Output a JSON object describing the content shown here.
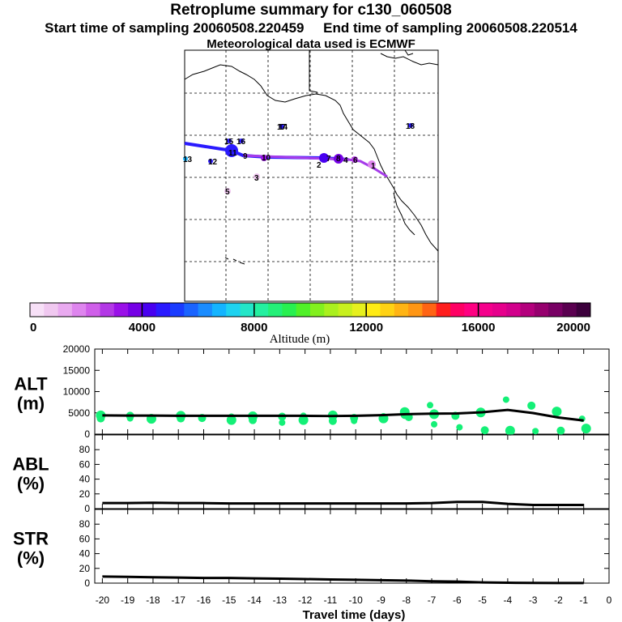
{
  "header": {
    "title": "Retroplume summary for c130_060508",
    "subtitle_start": "Start time of sampling 20060508.220459",
    "subtitle_end": "End time of sampling 20060508.220514",
    "met_line": "Meteorological data used is ECMWF"
  },
  "colorbar": {
    "label": "Altitude (m)",
    "ticks": [
      "0",
      "4000",
      "8000",
      "12000",
      "16000",
      "20000"
    ],
    "colors": [
      "#f7e0f7",
      "#f0c8f0",
      "#e9aaf0",
      "#de85ee",
      "#cf5fe9",
      "#b338e6",
      "#9a10e8",
      "#7500e6",
      "#4800f0",
      "#2a1aff",
      "#1a3cff",
      "#1a64ff",
      "#1a8cff",
      "#14b4ff",
      "#1ed2f0",
      "#23e6c8",
      "#23f0a0",
      "#23f078",
      "#28f050",
      "#50f028",
      "#82f01e",
      "#aaf01e",
      "#c8f01e",
      "#e6f01e",
      "#ffeb14",
      "#ffd214",
      "#ffb414",
      "#ff9614",
      "#ff6414",
      "#ff1e1e",
      "#ff0064",
      "#ff0082",
      "#f5008c",
      "#e6008c",
      "#d2008c",
      "#b4007d",
      "#96006e",
      "#780064",
      "#5a0050",
      "#3c003c"
    ]
  },
  "map": {
    "point_labels": [
      "1",
      "2",
      "3",
      "4",
      "5",
      "6",
      "7",
      "8",
      "9",
      "10",
      "11",
      "12",
      "13",
      "14",
      "15",
      "16",
      "17",
      "18"
    ]
  },
  "chart_data": [
    {
      "type": "line",
      "name": "ALT",
      "ylabel_line1": "ALT",
      "ylabel_line2": "(m)",
      "ylim": [
        0,
        20000
      ],
      "yticks": [
        "20000",
        "15000",
        "10000",
        "5000",
        "0"
      ],
      "x": [
        -20,
        -19,
        -18,
        -17,
        -16,
        -15,
        -14,
        -13,
        -12,
        -11,
        -10,
        -9,
        -8,
        -7,
        -6,
        -5,
        -4,
        -3,
        -2,
        -1
      ],
      "values": [
        4400,
        4350,
        4350,
        4300,
        4300,
        4300,
        4300,
        4300,
        4300,
        4250,
        4300,
        4450,
        4700,
        4800,
        4850,
        5150,
        5700,
        4950,
        3900,
        3200
      ],
      "scatter_x": [
        -20,
        -19,
        -18,
        -17,
        -16,
        -15,
        -14,
        -13,
        -12,
        -11,
        -10,
        -9,
        -8,
        -8,
        -7,
        -7,
        -6,
        -6,
        -5,
        -5,
        -4,
        -4,
        -3,
        -3,
        -2,
        -2,
        -1,
        -1,
        -20,
        -19,
        -18,
        -17,
        -16,
        -15,
        -14,
        -13,
        -12,
        -11,
        -10,
        -9,
        -8,
        -7
      ],
      "scatter_y": [
        4400,
        4300,
        4000,
        4300,
        3800,
        4100,
        4200,
        4100,
        4300,
        4400,
        3800,
        4200,
        5200,
        4000,
        6800,
        4700,
        4300,
        1600,
        5100,
        900,
        8100,
        800,
        6700,
        700,
        5300,
        800,
        3600,
        1300,
        3700,
        3700,
        3600,
        3700,
        3600,
        3300,
        3300,
        2700,
        3300,
        3100,
        3100,
        3700,
        4500,
        2300
      ],
      "series_color": "#14f077"
    },
    {
      "type": "line",
      "name": "ABL",
      "ylabel_line1": "ABL",
      "ylabel_line2": "(%)",
      "ylim": [
        0,
        100
      ],
      "yticks": [
        "80",
        "60",
        "40",
        "20",
        "0"
      ],
      "x": [
        -20,
        -19,
        -18,
        -17,
        -16,
        -15,
        -14,
        -13,
        -12,
        -11,
        -10,
        -9,
        -8,
        -7,
        -6,
        -5,
        -4,
        -3,
        -2,
        -1
      ],
      "values": [
        7.5,
        7.5,
        8,
        7.5,
        7.5,
        7,
        7,
        7,
        7,
        7,
        7,
        7,
        7,
        7.5,
        9,
        9,
        6.5,
        5,
        5,
        5
      ]
    },
    {
      "type": "line",
      "name": "STR",
      "ylabel_line1": "STR",
      "ylabel_line2": "(%)",
      "ylim": [
        0,
        100
      ],
      "yticks": [
        "80",
        "60",
        "40",
        "20",
        "0"
      ],
      "x": [
        -20,
        -19,
        -18,
        -17,
        -16,
        -15,
        -14,
        -13,
        -12,
        -11,
        -10,
        -9,
        -8,
        -7,
        -6,
        -5,
        -4,
        -3,
        -2,
        -1
      ],
      "values": [
        9,
        8.5,
        8,
        7.5,
        7,
        7,
        6.5,
        6,
        5.5,
        5,
        4.5,
        4,
        3.5,
        2.5,
        2,
        1,
        0.5,
        0.3,
        0.2,
        0.1
      ]
    }
  ],
  "x_axis": {
    "label": "Travel time (days)",
    "ticks": [
      "-20",
      "-19",
      "-18",
      "-17",
      "-16",
      "-15",
      "-14",
      "-13",
      "-12",
      "-11",
      "-10",
      "-9",
      "-8",
      "-7",
      "-6",
      "-5",
      "-4",
      "-3",
      "-2",
      "-1",
      "0"
    ]
  }
}
